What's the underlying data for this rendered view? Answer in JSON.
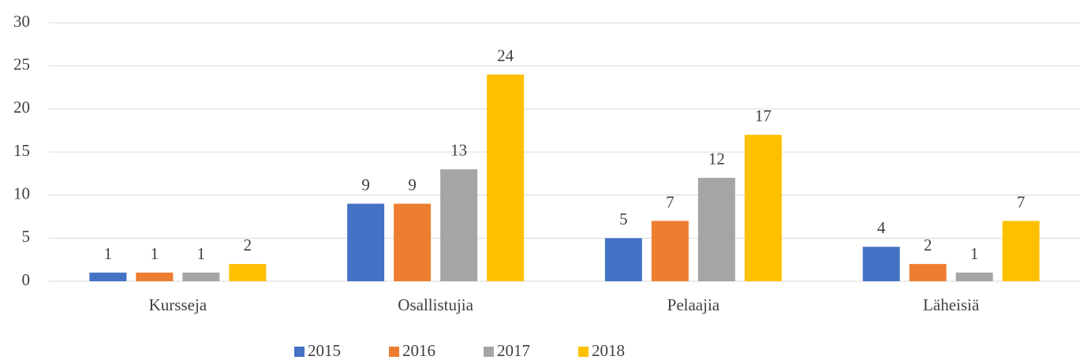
{
  "chart_data": {
    "type": "bar",
    "categories": [
      "Kursseja",
      "Osallistujia",
      "Pelaajia",
      "Läheisiä"
    ],
    "series": [
      {
        "name": "2015",
        "color": "#4472c4",
        "values": [
          1,
          9,
          5,
          4
        ]
      },
      {
        "name": "2016",
        "color": "#ed7d31",
        "values": [
          1,
          9,
          7,
          2
        ]
      },
      {
        "name": "2017",
        "color": "#a5a5a5",
        "values": [
          1,
          13,
          12,
          1
        ]
      },
      {
        "name": "2018",
        "color": "#ffc000",
        "values": [
          2,
          24,
          17,
          7
        ]
      }
    ],
    "ylim": [
      0,
      30
    ],
    "yticks": [
      0,
      5,
      10,
      15,
      20,
      25,
      30
    ],
    "grid": true,
    "legend": "bottom"
  }
}
